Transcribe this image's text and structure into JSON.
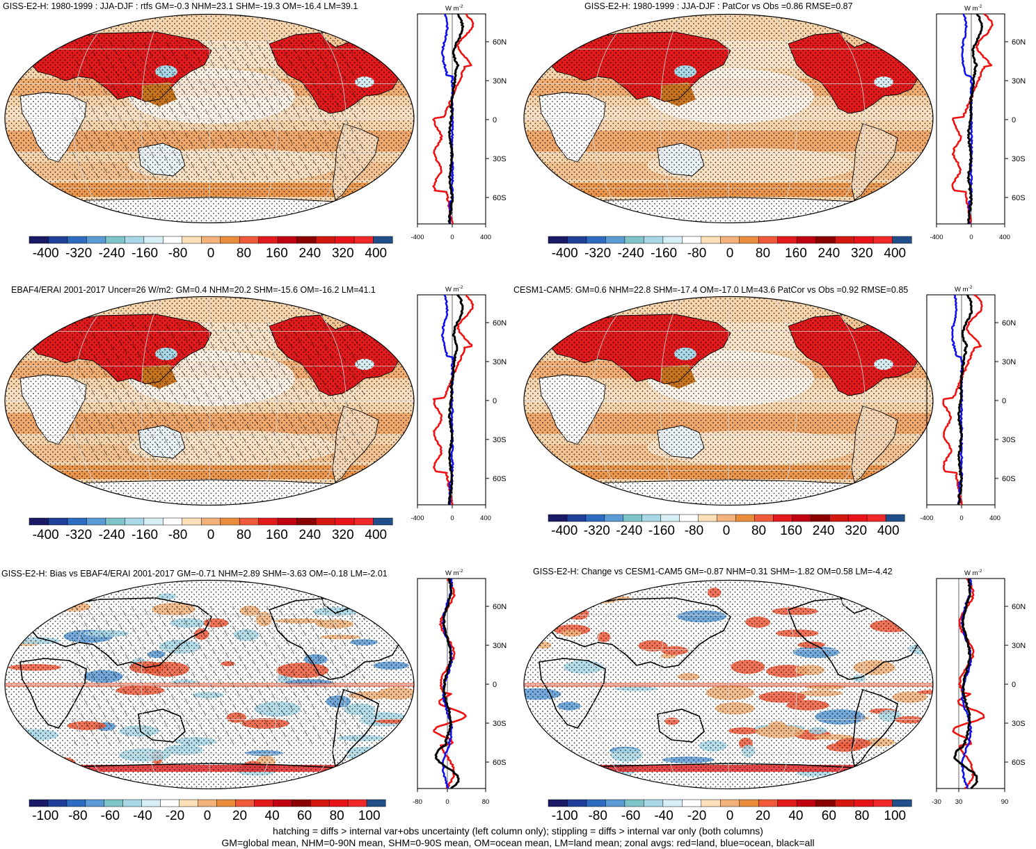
{
  "panels": [
    {
      "id": "p1",
      "title": "GISS-E2-H: 1980-1999 : JJA-DJF : rtfs GM=-0.3 NHM=23.1 SHM=-19.3 OM=-16.4 LM=39.1",
      "style": "clim",
      "hatch": true,
      "zonal_unit_w": "W m",
      "zonal_unit_exp": "-2",
      "zonal_xticks": [
        "-400",
        "0",
        "400"
      ],
      "lat_ticks": [
        "60N",
        "30N",
        "0",
        "30S",
        "60S"
      ],
      "cbar_labels": [
        "-400",
        "-320",
        "-240",
        "-160",
        "-80",
        "0",
        "80",
        "160",
        "240",
        "320",
        "400"
      ]
    },
    {
      "id": "p2",
      "title": "GISS-E2-H: 1980-1999 : JJA-DJF : PatCor vs Obs =0.86 RMSE=0.87",
      "style": "clim",
      "hatch": false,
      "zonal_unit_w": "W m",
      "zonal_unit_exp": "-2",
      "zonal_xticks": [
        "-400",
        "0",
        "400"
      ],
      "lat_ticks": [
        "60N",
        "30N",
        "0",
        "30S",
        "60S"
      ],
      "cbar_labels": [
        "-400",
        "-320",
        "-240",
        "-160",
        "-80",
        "0",
        "80",
        "160",
        "240",
        "320",
        "400"
      ]
    },
    {
      "id": "p3",
      "title": "EBAF4/ERAI 2001-2017 Uncer=26 W/m2: GM=0.4 NHM=20.2 SHM=-15.6 OM=-16.2 LM=41.1",
      "style": "clim",
      "hatch": true,
      "zonal_unit_w": "W m",
      "zonal_unit_exp": "-2",
      "zonal_xticks": [
        "-400",
        "0",
        "400"
      ],
      "lat_ticks": [
        "60N",
        "30N",
        "0",
        "30S",
        "60S"
      ],
      "cbar_labels": [
        "-400",
        "-320",
        "-240",
        "-160",
        "-80",
        "0",
        "80",
        "160",
        "240",
        "320",
        "400"
      ]
    },
    {
      "id": "p4",
      "title": "CESM1-CAM5: GM=0.6 NHM=22.8 SHM=-17.4 OM=-17.0 LM=43.6 PatCor vs Obs =0.92 RMSE=0.85",
      "style": "clim",
      "hatch": false,
      "zonal_unit_w": "W m",
      "zonal_unit_exp": "-2",
      "zonal_xticks": [
        "-400",
        "0",
        "400"
      ],
      "lat_ticks": [
        "60N",
        "30N",
        "0",
        "30S",
        "60S"
      ],
      "cbar_labels": [
        "-400",
        "-320",
        "-240",
        "-160",
        "-80",
        "0",
        "80",
        "160",
        "240",
        "320",
        "400"
      ]
    },
    {
      "id": "p5",
      "title": "GISS-E2-H: Bias vs EBAF4/ERAI 2001-2017 GM=-0.71 NHM=2.89 SHM=-3.63 OM=-0.18 LM=-2.01",
      "style": "diff",
      "hatch": true,
      "zonal_unit_w": "W m",
      "zonal_unit_exp": "-2",
      "zonal_xticks": [
        "-80",
        "0",
        "80"
      ],
      "lat_ticks": [
        "60N",
        "30N",
        "0",
        "30S",
        "60S"
      ],
      "cbar_labels": [
        "-100",
        "-80",
        "-60",
        "-40",
        "-20",
        "0",
        "20",
        "40",
        "60",
        "80",
        "100"
      ]
    },
    {
      "id": "p6",
      "title": "GISS-E2-H: Change vs CESM1-CAM5 GM=-0.87 NHM=0.31 SHM=-1.82 OM=0.58 LM=-4.42",
      "style": "diff",
      "hatch": false,
      "zonal_unit_w": "W m",
      "zonal_unit_exp": "-2",
      "zonal_xticks": [
        "-30",
        "30",
        "90"
      ],
      "lat_ticks": [
        "60N",
        "30N",
        "0",
        "30S",
        "60S"
      ],
      "cbar_labels": [
        "-100",
        "-80",
        "-60",
        "-40",
        "-20",
        "0",
        "20",
        "40",
        "60",
        "80",
        "100"
      ]
    }
  ],
  "colorbar_colors": [
    "#1a1a66",
    "#1f3f99",
    "#2d6cc0",
    "#5b9bd5",
    "#7fc4c8",
    "#a9d8e6",
    "#d6eef4",
    "#ffffff",
    "#fde0b8",
    "#f2b27a",
    "#e98c3c",
    "#f05a3a",
    "#e31a1c",
    "#c00010",
    "#8b0000",
    "#d4170f",
    "#e8141a",
    "#f0282a",
    "#1f4e88"
  ],
  "series_colors": {
    "land": "#ee1111",
    "ocean": "#1111ee",
    "all": "#000000"
  },
  "footnotes": [
    "hatching = diffs > internal var+obs uncertainty (left column only); stippling = diffs > internal var only (both columns)",
    "GM=global mean, NHM=0-90N mean, SHM=0-90S mean, OM=ocean mean, LM=land mean; zonal avgs: red=land, blue=ocean, black=all"
  ]
}
